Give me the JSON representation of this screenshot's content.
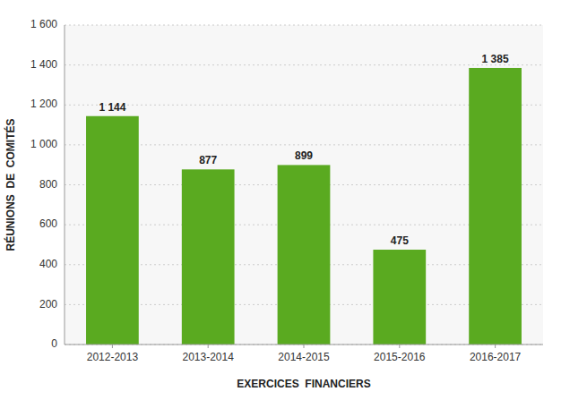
{
  "chart_data": {
    "type": "bar",
    "categories": [
      "2012-2013",
      "2013-2014",
      "2014-2015",
      "2015-2016",
      "2016-2017"
    ],
    "values": [
      1144,
      877,
      899,
      475,
      1385
    ],
    "value_labels": [
      "1 144",
      "877",
      "899",
      "475",
      "1 385"
    ],
    "color": "#5aaa20",
    "xlabel": "EXERCICES  FINANCIERS",
    "ylabel": "RÉUNIONS  DE  COMITÉS",
    "ylim": [
      0,
      1600
    ],
    "yticks": [
      0,
      200,
      400,
      600,
      800,
      {
        "value": 1000,
        "label": "1 000"
      },
      {
        "value": 1200,
        "label": "1 200"
      },
      {
        "value": 1400,
        "label": "1 400"
      },
      {
        "value": 1600,
        "label": "1 600"
      }
    ],
    "grid": true,
    "data_labels": true
  }
}
